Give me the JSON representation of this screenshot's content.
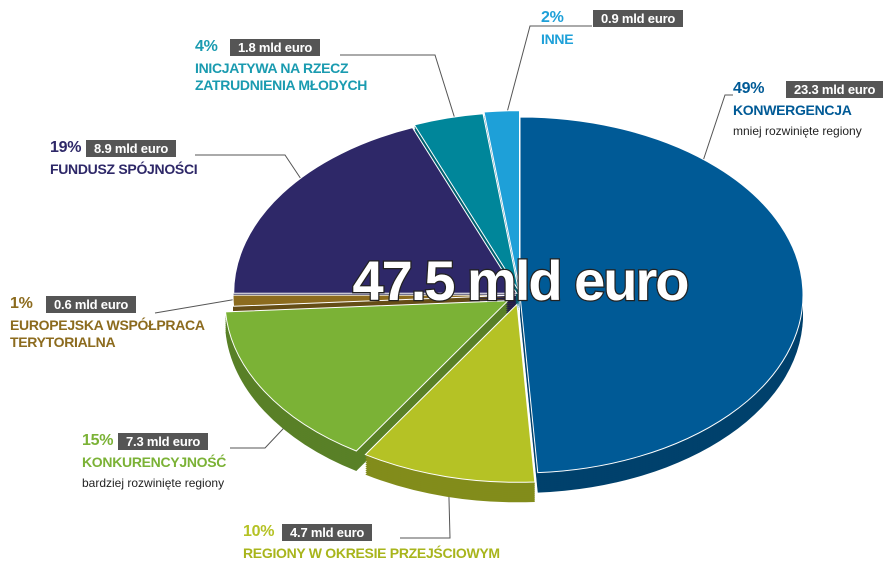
{
  "chart_data": {
    "type": "pie",
    "total_label": "47.5 mld euro",
    "categories": [
      "KONWERGENCJA",
      "REGIONY W OKRESIE PRZEJŚCIOWYM",
      "KONKURENCYJNOŚĆ",
      "EUROPEJSKA WSPÓŁPRACA\nTERYTORIALNA",
      "FUNDUSZ SPÓJNOŚCI",
      "INICJATYWA NA RZECZ\nZATRUDNIENIA MŁODYCH",
      "INNE"
    ],
    "subtitles": [
      "mniej rozwinięte regiony",
      null,
      "bardziej rozwinięte regiony",
      null,
      null,
      null,
      null
    ],
    "values": [
      49,
      10,
      15,
      1,
      19,
      4,
      2
    ],
    "value_labels": [
      "49%",
      "10%",
      "15%",
      "1%",
      "19%",
      "4%",
      "2%"
    ],
    "amounts": [
      23.3,
      4.7,
      7.3,
      0.6,
      8.9,
      1.8,
      0.9
    ],
    "amount_labels": [
      "23.3 mld euro",
      "4.7 mld euro",
      "7.3 mld euro",
      "0.6 mld euro",
      "8.9 mld euro",
      "1.8 mld euro",
      "0.9 mld euro"
    ],
    "colors": [
      "#005a96",
      "#b5c225",
      "#7bb236",
      "#8c6b1e",
      "#2e2868",
      "#00869a",
      "#1ea0d8"
    ]
  }
}
